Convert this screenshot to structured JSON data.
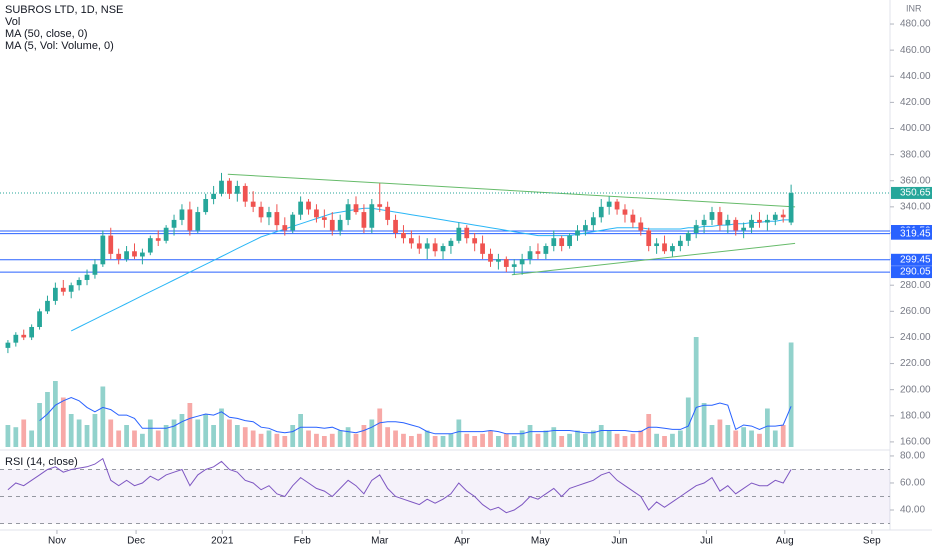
{
  "chart_data": {
    "type": "candlestick",
    "title": "SUBROS LTD, 1D, NSE",
    "legend": [
      "Vol",
      "MA (50, close, 0)",
      "MA (5, Vol: Volume, 0)"
    ],
    "currency": "INR",
    "rsi_title": "RSI (14, close)",
    "up_color": "#26a69a",
    "down_color": "#ef5350",
    "ma_color": "#29b6f6",
    "vol_ma_color": "#2962ff",
    "rsi_color": "#7e57c2",
    "level_color": "#2962ff",
    "trend_color": "#66bb6a",
    "xlim": [
      -1,
      111.5
    ],
    "xticks": [
      {
        "value": 6.2,
        "label": "Nov"
      },
      {
        "value": 16.2,
        "label": "Dec"
      },
      {
        "value": 27.1,
        "label": "2021"
      },
      {
        "value": 37.2,
        "label": "Feb"
      },
      {
        "value": 47.0,
        "label": "Mar"
      },
      {
        "value": 57.4,
        "label": "Apr"
      },
      {
        "value": 67.3,
        "label": "May"
      },
      {
        "value": 77.3,
        "label": "Jun"
      },
      {
        "value": 88.3,
        "label": "Jul"
      },
      {
        "value": 98.2,
        "label": "Aug"
      },
      {
        "value": 109.2,
        "label": "Sep"
      }
    ],
    "ylim": [
      156.1,
      498.4
    ],
    "yticks": [
      {
        "value": 160,
        "label": "160.00"
      },
      {
        "value": 180,
        "label": "180.00"
      },
      {
        "value": 200,
        "label": "200.00"
      },
      {
        "value": 220,
        "label": "220.00"
      },
      {
        "value": 240,
        "label": "240.00"
      },
      {
        "value": 260,
        "label": "260.00"
      },
      {
        "value": 280,
        "label": "280.00"
      },
      {
        "value": 300,
        "label": "300.00"
      },
      {
        "value": 320,
        "label": "320.00"
      },
      {
        "value": 340,
        "label": "340.00"
      },
      {
        "value": 360,
        "label": "360.00"
      },
      {
        "value": 380,
        "label": "380.00"
      },
      {
        "value": 400,
        "label": "400.00"
      },
      {
        "value": 420,
        "label": "420.00"
      },
      {
        "value": 440,
        "label": "440.00"
      },
      {
        "value": 460,
        "label": "460.00"
      },
      {
        "value": 480,
        "label": "480.00"
      }
    ],
    "ohlc": [
      [
        232,
        238,
        228,
        236
      ],
      [
        236,
        244,
        233,
        242
      ],
      [
        242,
        246,
        238,
        240
      ],
      [
        240,
        250,
        238,
        248
      ],
      [
        248,
        262,
        246,
        260
      ],
      [
        260,
        272,
        258,
        268
      ],
      [
        268,
        282,
        265,
        278
      ],
      [
        278,
        284,
        272,
        275
      ],
      [
        275,
        282,
        270,
        280
      ],
      [
        280,
        286,
        276,
        284
      ],
      [
        284,
        292,
        280,
        288
      ],
      [
        288,
        300,
        285,
        296
      ],
      [
        296,
        322,
        294,
        318
      ],
      [
        318,
        324,
        300,
        304
      ],
      [
        304,
        308,
        296,
        300
      ],
      [
        300,
        310,
        298,
        306
      ],
      [
        306,
        312,
        300,
        302
      ],
      [
        302,
        308,
        296,
        305
      ],
      [
        305,
        318,
        303,
        316
      ],
      [
        316,
        322,
        310,
        314
      ],
      [
        314,
        326,
        312,
        324
      ],
      [
        324,
        334,
        318,
        330
      ],
      [
        330,
        342,
        326,
        338
      ],
      [
        338,
        344,
        318,
        322
      ],
      [
        322,
        340,
        320,
        336
      ],
      [
        336,
        350,
        334,
        346
      ],
      [
        346,
        356,
        342,
        350
      ],
      [
        350,
        366,
        348,
        360
      ],
      [
        360,
        362,
        346,
        350
      ],
      [
        350,
        360,
        344,
        356
      ],
      [
        356,
        358,
        340,
        344
      ],
      [
        344,
        352,
        336,
        340
      ],
      [
        340,
        344,
        328,
        332
      ],
      [
        332,
        340,
        326,
        336
      ],
      [
        336,
        342,
        322,
        326
      ],
      [
        326,
        332,
        318,
        322
      ],
      [
        322,
        336,
        320,
        334
      ],
      [
        334,
        348,
        330,
        344
      ],
      [
        344,
        346,
        334,
        338
      ],
      [
        338,
        342,
        328,
        332
      ],
      [
        332,
        338,
        324,
        330
      ],
      [
        330,
        336,
        318,
        322
      ],
      [
        322,
        334,
        318,
        330
      ],
      [
        330,
        346,
        326,
        342
      ],
      [
        342,
        348,
        334,
        336
      ],
      [
        336,
        342,
        320,
        324
      ],
      [
        324,
        346,
        320,
        342
      ],
      [
        342,
        358,
        336,
        340
      ],
      [
        340,
        344,
        326,
        330
      ],
      [
        330,
        334,
        316,
        320
      ],
      [
        320,
        326,
        312,
        316
      ],
      [
        316,
        322,
        308,
        312
      ],
      [
        312,
        318,
        304,
        308
      ],
      [
        308,
        316,
        300,
        312
      ],
      [
        312,
        316,
        302,
        306
      ],
      [
        306,
        312,
        300,
        310
      ],
      [
        310,
        316,
        304,
        314
      ],
      [
        314,
        328,
        312,
        324
      ],
      [
        324,
        326,
        312,
        316
      ],
      [
        316,
        320,
        306,
        312
      ],
      [
        312,
        318,
        300,
        304
      ],
      [
        304,
        308,
        294,
        298
      ],
      [
        298,
        304,
        292,
        300
      ],
      [
        300,
        302,
        290,
        294
      ],
      [
        294,
        300,
        288,
        296
      ],
      [
        296,
        304,
        288,
        300
      ],
      [
        300,
        310,
        296,
        306
      ],
      [
        306,
        312,
        300,
        304
      ],
      [
        304,
        312,
        300,
        310
      ],
      [
        310,
        322,
        306,
        316
      ],
      [
        316,
        318,
        306,
        310
      ],
      [
        310,
        320,
        308,
        318
      ],
      [
        318,
        326,
        314,
        322
      ],
      [
        322,
        330,
        318,
        326
      ],
      [
        326,
        336,
        322,
        332
      ],
      [
        332,
        346,
        328,
        340
      ],
      [
        340,
        348,
        334,
        344
      ],
      [
        344,
        346,
        334,
        338
      ],
      [
        338,
        342,
        328,
        334
      ],
      [
        334,
        338,
        324,
        328
      ],
      [
        328,
        332,
        318,
        322
      ],
      [
        322,
        324,
        306,
        310
      ],
      [
        310,
        316,
        304,
        312
      ],
      [
        312,
        318,
        304,
        306
      ],
      [
        306,
        312,
        302,
        310
      ],
      [
        310,
        318,
        306,
        314
      ],
      [
        314,
        322,
        310,
        320
      ],
      [
        320,
        330,
        316,
        326
      ],
      [
        326,
        334,
        320,
        330
      ],
      [
        330,
        340,
        326,
        336
      ],
      [
        336,
        340,
        322,
        326
      ],
      [
        326,
        334,
        320,
        330
      ],
      [
        330,
        332,
        318,
        322
      ],
      [
        322,
        328,
        316,
        324
      ],
      [
        324,
        334,
        320,
        330
      ],
      [
        330,
        336,
        324,
        328
      ],
      [
        328,
        334,
        322,
        330
      ],
      [
        330,
        336,
        326,
        334
      ],
      [
        334,
        338,
        328,
        332
      ],
      [
        328,
        357,
        326,
        350.65
      ]
    ],
    "ma": [
      null,
      null,
      null,
      null,
      null,
      null,
      null,
      null,
      245,
      248,
      251,
      254,
      257,
      260,
      263,
      266,
      269,
      272,
      275,
      278,
      281,
      284,
      287,
      290,
      293,
      296,
      299,
      302,
      305,
      308,
      311,
      314,
      317,
      319,
      321,
      323,
      325,
      327,
      329,
      331,
      333,
      335,
      336,
      337,
      338,
      339,
      339,
      338,
      337,
      336,
      335,
      334,
      333,
      332,
      331,
      330,
      329,
      328,
      327,
      326,
      325,
      324,
      323,
      322,
      321,
      320,
      319,
      318,
      318,
      318,
      318,
      318,
      319,
      320,
      321,
      322,
      323,
      324,
      324,
      324,
      324,
      323,
      323,
      323,
      323,
      323,
      324,
      324,
      325,
      325,
      326,
      326,
      327,
      327,
      328,
      328,
      329,
      329,
      330,
      330
    ],
    "volume": [
      20,
      18,
      25,
      15,
      40,
      50,
      60,
      45,
      30,
      25,
      20,
      30,
      55,
      25,
      15,
      20,
      15,
      12,
      25,
      15,
      20,
      25,
      30,
      40,
      25,
      30,
      20,
      35,
      25,
      20,
      18,
      15,
      12,
      15,
      12,
      10,
      20,
      30,
      15,
      12,
      10,
      12,
      15,
      18,
      12,
      20,
      25,
      35,
      18,
      15,
      12,
      10,
      12,
      15,
      10,
      10,
      12,
      25,
      12,
      10,
      12,
      15,
      10,
      12,
      10,
      15,
      20,
      12,
      15,
      18,
      10,
      12,
      15,
      12,
      15,
      20,
      15,
      12,
      10,
      12,
      15,
      30,
      12,
      10,
      12,
      15,
      45,
      100,
      40,
      20,
      25,
      20,
      15,
      18,
      15,
      12,
      35,
      15,
      20,
      95
    ],
    "vol_ma": [
      null,
      null,
      null,
      null,
      24,
      30,
      38,
      42,
      45,
      42,
      36,
      32,
      36,
      34,
      29,
      29,
      26,
      17,
      17,
      17,
      17,
      19,
      23,
      26,
      28,
      30,
      29,
      32,
      27,
      26,
      24,
      23,
      18,
      17,
      14,
      13,
      14,
      18,
      18,
      18,
      17,
      18,
      15,
      14,
      13,
      15,
      18,
      22,
      23,
      23,
      22,
      20,
      18,
      14,
      12,
      12,
      12,
      14,
      14,
      14,
      14,
      15,
      14,
      12,
      12,
      12,
      14,
      14,
      14,
      15,
      15,
      15,
      14,
      13,
      13,
      15,
      15,
      15,
      15,
      14,
      14,
      18,
      18,
      17,
      16,
      16,
      19,
      36,
      38,
      38,
      40,
      38,
      16,
      20,
      19,
      16,
      19,
      19,
      20,
      37
    ],
    "rsi": [
      55,
      60,
      58,
      62,
      66,
      70,
      72,
      68,
      70,
      71,
      72,
      74,
      78,
      62,
      58,
      62,
      58,
      60,
      65,
      62,
      66,
      68,
      70,
      58,
      66,
      70,
      72,
      76,
      70,
      68,
      62,
      60,
      55,
      58,
      52,
      50,
      58,
      64,
      60,
      56,
      54,
      50,
      56,
      62,
      58,
      52,
      62,
      66,
      56,
      50,
      48,
      46,
      44,
      48,
      45,
      48,
      52,
      60,
      54,
      50,
      44,
      40,
      42,
      38,
      40,
      44,
      50,
      48,
      52,
      56,
      50,
      56,
      58,
      60,
      62,
      66,
      68,
      62,
      58,
      54,
      50,
      40,
      46,
      42,
      46,
      50,
      54,
      58,
      60,
      64,
      54,
      58,
      52,
      56,
      60,
      58,
      58,
      62,
      60,
      70
    ],
    "rsi_lim": [
      25.2,
      84.4
    ],
    "rsi_ticks": [
      {
        "value": 40,
        "label": "40.00"
      },
      {
        "value": 60,
        "label": "60.00"
      },
      {
        "value": 80,
        "label": "80.00"
      }
    ],
    "rsi_levels": [
      30,
      50,
      70
    ],
    "levels": [
      {
        "value": 321.5,
        "label": "321.50"
      },
      {
        "value": 319.45,
        "label": "319.45"
      },
      {
        "value": 299.45,
        "label": "299.45"
      },
      {
        "value": 290.05,
        "label": "290.05"
      }
    ],
    "last_price": {
      "value": 350.65,
      "label": "350.65"
    },
    "trendlines": [
      {
        "x": [
          27.8,
          99.5
        ],
        "y": [
          365,
          340
        ]
      },
      {
        "x": [
          63.7,
          99.5
        ],
        "y": [
          288,
          312
        ]
      }
    ]
  }
}
